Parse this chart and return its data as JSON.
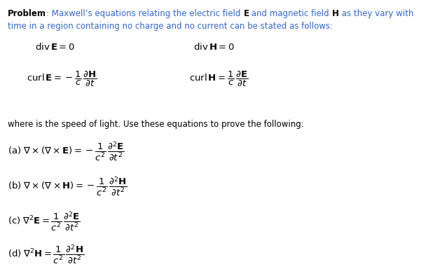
{
  "background_color": "#ffffff",
  "fig_width": 6.28,
  "fig_height": 3.84,
  "dpi": 100,
  "fs_body": 8.5,
  "fs_eq": 9.5,
  "line1_parts": [
    {
      "text": "Problem",
      "bold": true,
      "color": "#000000"
    },
    {
      "text": ": Maxwell’s equations relating the electric field ",
      "bold": false,
      "color": "#3366cc"
    },
    {
      "text": "E",
      "bold": true,
      "color": "#000000"
    },
    {
      "text": " and magnetic field ",
      "bold": false,
      "color": "#3366cc"
    },
    {
      "text": "H",
      "bold": true,
      "color": "#000000"
    },
    {
      "text": " as they vary with",
      "bold": false,
      "color": "#3366cc"
    }
  ],
  "line2": "time in a region containing no charge and no current can be stated as follows:",
  "line2_color": "#3366cc",
  "where_line": "where is the speed of light. Use these equations to prove the following:",
  "where_color": "#000000"
}
